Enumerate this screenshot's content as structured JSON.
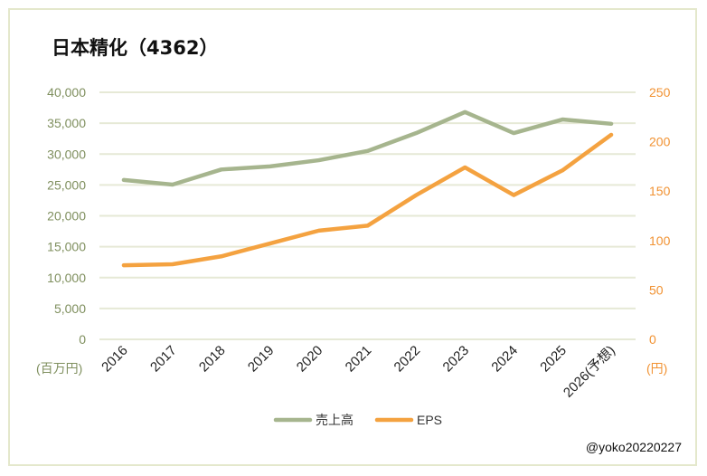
{
  "chart_data": {
    "type": "line",
    "title": "日本精化（4362）",
    "categories": [
      "2016",
      "2017",
      "2018",
      "2019",
      "2020",
      "2021",
      "2022",
      "2023",
      "2024",
      "2025",
      "2026(予想)"
    ],
    "series": [
      {
        "name": "売上高",
        "axis": "left",
        "color": "#a6b58e",
        "values": [
          25800,
          25050,
          27500,
          28000,
          29000,
          30500,
          33400,
          36800,
          33400,
          35600,
          34900
        ]
      },
      {
        "name": "EPS",
        "axis": "right",
        "color": "#f4a240",
        "values": [
          75,
          76,
          84,
          97,
          110,
          115,
          146,
          174,
          146,
          171,
          207
        ]
      }
    ],
    "left_axis": {
      "label": "(百万円)",
      "range": [
        0,
        40000
      ],
      "ticks": [
        "0",
        "5,000",
        "10,000",
        "15,000",
        "20,000",
        "25,000",
        "30,000",
        "35,000",
        "40,000"
      ]
    },
    "right_axis": {
      "label": "(円)",
      "range": [
        0,
        250
      ],
      "ticks": [
        "0",
        "50",
        "100",
        "150",
        "200",
        "250"
      ]
    },
    "grid": true,
    "legend": "bottom-center"
  },
  "credit": "@yoko20220227"
}
